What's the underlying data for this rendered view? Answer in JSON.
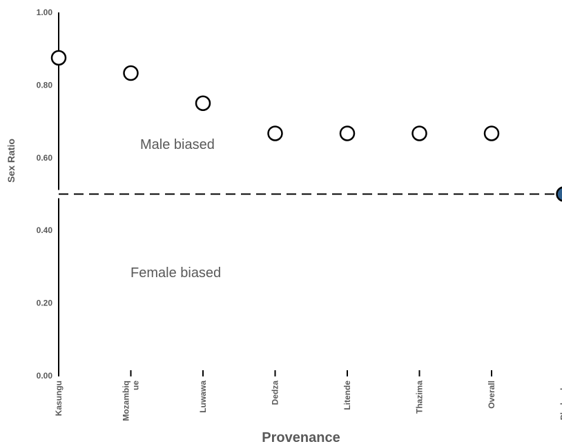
{
  "chart_data": {
    "type": "scatter",
    "categories": [
      "Kasungu",
      "Mozambique",
      "Luwawa",
      "Dedza",
      "Litende",
      "Thazima",
      "Overall",
      "Phalombe"
    ],
    "category_labels": [
      [
        "Kasungu"
      ],
      [
        "Mozambiq",
        "ue"
      ],
      [
        "Luwawa"
      ],
      [
        "Dedza"
      ],
      [
        "Litende"
      ],
      [
        "Thazima"
      ],
      [
        "Overall"
      ],
      [
        "Phalombe"
      ]
    ],
    "values": [
      0.875,
      0.833,
      0.75,
      0.667,
      0.667,
      0.667,
      0.667,
      0.5
    ],
    "highlight_index": 7,
    "threshold": 0.5,
    "ylim": [
      0,
      1
    ],
    "yticks": [
      0.0,
      0.2,
      0.4,
      0.6,
      0.8,
      1.0
    ],
    "ytick_labels": [
      "0.00",
      "0.20",
      "0.40",
      "0.60",
      "0.80",
      "1.00"
    ],
    "ylabel": "Sex Ratio",
    "xlabel": "Provenance",
    "annotations": [
      "Male biased",
      "Female biased"
    ],
    "grid": false,
    "colors": {
      "open_marker_fill": "#ffffff",
      "highlight_marker_fill": "#2e5f8e",
      "marker_edge": "#000000",
      "text": "#595959"
    }
  }
}
